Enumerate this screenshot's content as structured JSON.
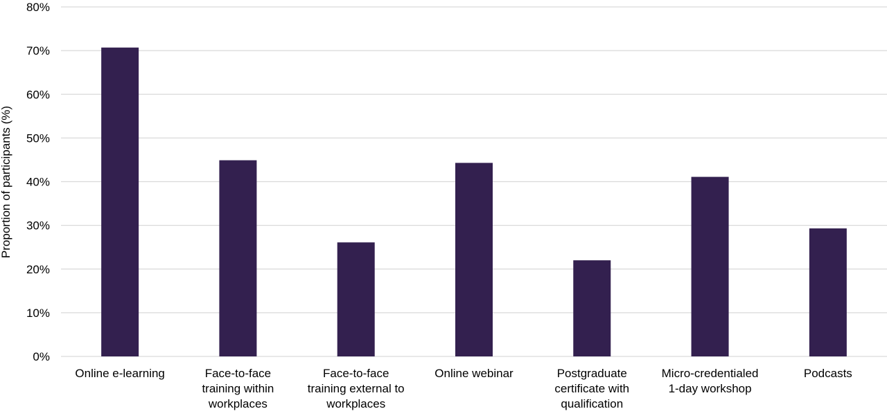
{
  "chart_data": {
    "type": "bar",
    "title": "",
    "xlabel": "",
    "ylabel": "Proportion of participants (%)",
    "ylim": [
      0,
      80
    ],
    "yticks": [
      0,
      10,
      20,
      30,
      40,
      50,
      60,
      70,
      80
    ],
    "ytick_labels": [
      "0%",
      "10%",
      "20%",
      "30%",
      "40%",
      "50%",
      "60%",
      "70%",
      "80%"
    ],
    "grid": true,
    "legend": "none",
    "bar_color": "#33204f",
    "categories": [
      [
        "Online e-learning"
      ],
      [
        "Face-to-face",
        "training within",
        "workplaces"
      ],
      [
        "Face-to-face",
        "training external to",
        "workplaces"
      ],
      [
        "Online webinar"
      ],
      [
        "Postgraduate",
        "certificate with",
        "qualification"
      ],
      [
        "Micro-credentialed",
        "1-day workshop"
      ],
      [
        "Podcasts"
      ]
    ],
    "values": [
      70.7,
      44.9,
      26.1,
      44.3,
      22.0,
      41.1,
      29.3
    ]
  }
}
